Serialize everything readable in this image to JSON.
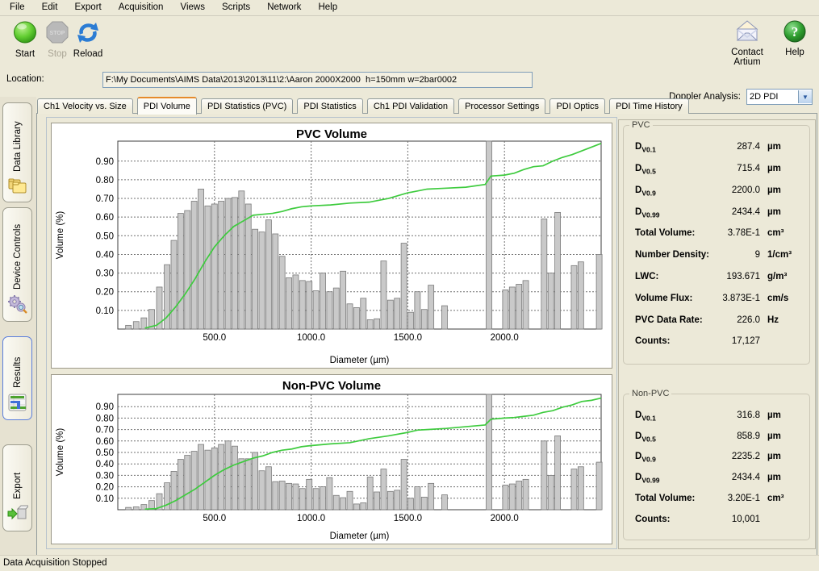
{
  "menu": {
    "items": [
      "File",
      "Edit",
      "Export",
      "Acquisition",
      "Views",
      "Scripts",
      "Network",
      "Help"
    ]
  },
  "toolbar": {
    "start_label": "Start",
    "stop_label": "Stop",
    "reload_label": "Reload",
    "contact_label": "Contact Artium",
    "help_label": "Help"
  },
  "location": {
    "label": "Location:",
    "value": "F:\\My Documents\\AIMS Data\\2013\\2013\\11\\2:\\Aaron 2000X2000  h=150mm w=2bar0002"
  },
  "doppler": {
    "label": "Doppler Analysis:",
    "value": "2D PDI"
  },
  "tabs": {
    "selected": "PDI Volume",
    "items": [
      "Ch1 Velocity vs. Size",
      "PDI Volume",
      "PDI Statistics (PVC)",
      "PDI Statistics",
      "Ch1 PDI Validation",
      "Processor Settings",
      "PDI Optics",
      "PDI Time History"
    ]
  },
  "sidebar": {
    "items": [
      {
        "label": "Data Library",
        "icon": "folders-icon"
      },
      {
        "label": "Device Controls",
        "icon": "gears-icon"
      },
      {
        "label": "Results",
        "icon": "bar-chart-icon"
      },
      {
        "label": "Export",
        "icon": "export-icon"
      }
    ]
  },
  "stats": {
    "pvc": {
      "title": "PVC",
      "rows": [
        {
          "label": "D",
          "sub": "V0.1",
          "value": "287.4",
          "unit": "µm"
        },
        {
          "label": "D",
          "sub": "V0.5",
          "value": "715.4",
          "unit": "µm"
        },
        {
          "label": "D",
          "sub": "V0.9",
          "value": "2200.0",
          "unit": "µm"
        },
        {
          "label": "D",
          "sub": "V0.99",
          "value": "2434.4",
          "unit": "µm"
        },
        {
          "label": "Total Volume:",
          "sub": "",
          "value": "3.78E-1",
          "unit": "cm³"
        },
        {
          "label": "Number Density:",
          "sub": "",
          "value": "9",
          "unit": "1/cm³"
        },
        {
          "label": "LWC:",
          "sub": "",
          "value": "193.671",
          "unit": "g/m³"
        },
        {
          "label": "Volume Flux:",
          "sub": "",
          "value": "3.873E-1",
          "unit": "cm/s"
        },
        {
          "label": "PVC Data Rate:",
          "sub": "",
          "value": "226.0",
          "unit": "Hz"
        },
        {
          "label": "Counts:",
          "sub": "",
          "value": "17,127",
          "unit": ""
        }
      ]
    },
    "nonpvc": {
      "title": "Non-PVC",
      "rows": [
        {
          "label": "D",
          "sub": "V0.1",
          "value": "316.8",
          "unit": "µm"
        },
        {
          "label": "D",
          "sub": "V0.5",
          "value": "858.9",
          "unit": "µm"
        },
        {
          "label": "D",
          "sub": "V0.9",
          "value": "2235.2",
          "unit": "µm"
        },
        {
          "label": "D",
          "sub": "V0.99",
          "value": "2434.4",
          "unit": "µm"
        },
        {
          "label": "Total Volume:",
          "sub": "",
          "value": "3.20E-1",
          "unit": "cm³"
        },
        {
          "label": "Counts:",
          "sub": "",
          "value": "10,001",
          "unit": ""
        }
      ]
    }
  },
  "status_bar": {
    "text": "Data Acquisition Stopped"
  },
  "colors": {
    "window_bg": "#ece9d8",
    "tab_selected_top": "#e68b2c",
    "bar_fill": "#c9c9c9",
    "bar_stroke": "#7a7a7a",
    "cumulative_line": "#3ecb3e",
    "start_green": "#4fc42e",
    "help_green": "#2f9e2f",
    "reload_blue": "#2b7cd4"
  },
  "chart_data": [
    {
      "type": "bar",
      "title": "PVC Volume",
      "xlabel": "Diameter (µm)",
      "ylabel": "Volume (%)",
      "xlim": [
        0,
        2500
      ],
      "ylim": [
        0,
        1.007
      ],
      "grid": true,
      "x_ticks": [
        500,
        1000,
        1500,
        2000
      ],
      "x_tick_labels": [
        "500.0",
        "1000.0",
        "1500.0",
        "2000.0"
      ],
      "y_ticks": [
        0.1,
        0.2,
        0.3,
        0.4,
        0.5,
        0.6,
        0.7,
        0.8,
        0.9
      ],
      "y_tick_labels": [
        "0.10",
        "0.20",
        "0.30",
        "0.40",
        "0.50",
        "0.60",
        "0.70",
        "0.80",
        "0.90"
      ],
      "bars": [
        [
          55,
          0.02
        ],
        [
          95,
          0.04
        ],
        [
          135,
          0.06
        ],
        [
          175,
          0.105
        ],
        [
          215,
          0.225
        ],
        [
          255,
          0.345
        ],
        [
          290,
          0.475
        ],
        [
          325,
          0.62
        ],
        [
          360,
          0.635
        ],
        [
          395,
          0.685
        ],
        [
          430,
          0.75
        ],
        [
          465,
          0.66
        ],
        [
          500,
          0.67
        ],
        [
          535,
          0.685
        ],
        [
          570,
          0.7
        ],
        [
          605,
          0.705
        ],
        [
          640,
          0.74
        ],
        [
          675,
          0.67
        ],
        [
          710,
          0.535
        ],
        [
          745,
          0.52
        ],
        [
          780,
          0.585
        ],
        [
          815,
          0.51
        ],
        [
          850,
          0.39
        ],
        [
          885,
          0.275
        ],
        [
          920,
          0.29
        ],
        [
          955,
          0.26
        ],
        [
          990,
          0.255
        ],
        [
          1025,
          0.205
        ],
        [
          1060,
          0.3
        ],
        [
          1095,
          0.2
        ],
        [
          1130,
          0.22
        ],
        [
          1165,
          0.31
        ],
        [
          1200,
          0.135
        ],
        [
          1235,
          0.115
        ],
        [
          1270,
          0.165
        ],
        [
          1305,
          0.05
        ],
        [
          1340,
          0.055
        ],
        [
          1375,
          0.365
        ],
        [
          1410,
          0.155
        ],
        [
          1445,
          0.165
        ],
        [
          1480,
          0.46
        ],
        [
          1515,
          0.09
        ],
        [
          1550,
          0.2
        ],
        [
          1585,
          0.105
        ],
        [
          1620,
          0.235
        ],
        [
          1690,
          0.125
        ],
        [
          1920,
          1.01
        ],
        [
          2005,
          0.21
        ],
        [
          2040,
          0.225
        ],
        [
          2075,
          0.24
        ],
        [
          2110,
          0.26
        ],
        [
          2205,
          0.59
        ],
        [
          2240,
          0.3
        ],
        [
          2275,
          0.625
        ],
        [
          2360,
          0.34
        ],
        [
          2395,
          0.36
        ],
        [
          2490,
          0.4
        ]
      ],
      "cumulative_line": [
        [
          140,
          0.005
        ],
        [
          200,
          0.02
        ],
        [
          250,
          0.06
        ],
        [
          300,
          0.12
        ],
        [
          350,
          0.19
        ],
        [
          400,
          0.27
        ],
        [
          450,
          0.36
        ],
        [
          500,
          0.44
        ],
        [
          550,
          0.5
        ],
        [
          600,
          0.55
        ],
        [
          650,
          0.58
        ],
        [
          700,
          0.61
        ],
        [
          750,
          0.615
        ],
        [
          800,
          0.62
        ],
        [
          850,
          0.63
        ],
        [
          900,
          0.645
        ],
        [
          950,
          0.655
        ],
        [
          1000,
          0.66
        ],
        [
          1100,
          0.665
        ],
        [
          1200,
          0.675
        ],
        [
          1300,
          0.68
        ],
        [
          1400,
          0.7
        ],
        [
          1500,
          0.73
        ],
        [
          1550,
          0.74
        ],
        [
          1600,
          0.75
        ],
        [
          1700,
          0.755
        ],
        [
          1800,
          0.76
        ],
        [
          1900,
          0.775
        ],
        [
          1930,
          0.82
        ],
        [
          2000,
          0.825
        ],
        [
          2050,
          0.835
        ],
        [
          2100,
          0.855
        ],
        [
          2150,
          0.87
        ],
        [
          2200,
          0.875
        ],
        [
          2250,
          0.9
        ],
        [
          2300,
          0.92
        ],
        [
          2350,
          0.935
        ],
        [
          2400,
          0.955
        ],
        [
          2450,
          0.975
        ],
        [
          2500,
          0.995
        ]
      ]
    },
    {
      "type": "bar",
      "title": "Non-PVC Volume",
      "xlabel": "Diameter (µm)",
      "ylabel": "Volume (%)",
      "xlim": [
        0,
        2500
      ],
      "ylim": [
        0,
        1.007
      ],
      "grid": true,
      "x_ticks": [
        500,
        1000,
        1500,
        2000
      ],
      "x_tick_labels": [
        "500.0",
        "1000.0",
        "1500.0",
        "2000.0"
      ],
      "y_ticks": [
        0.1,
        0.2,
        0.3,
        0.4,
        0.5,
        0.6,
        0.7,
        0.8,
        0.9
      ],
      "y_tick_labels": [
        "0.10",
        "0.20",
        "0.30",
        "0.40",
        "0.50",
        "0.60",
        "0.70",
        "0.80",
        "0.90"
      ],
      "bars": [
        [
          55,
          0.02
        ],
        [
          95,
          0.025
        ],
        [
          135,
          0.045
        ],
        [
          175,
          0.08
        ],
        [
          215,
          0.14
        ],
        [
          255,
          0.235
        ],
        [
          290,
          0.335
        ],
        [
          325,
          0.44
        ],
        [
          360,
          0.475
        ],
        [
          395,
          0.51
        ],
        [
          430,
          0.57
        ],
        [
          465,
          0.52
        ],
        [
          500,
          0.54
        ],
        [
          535,
          0.57
        ],
        [
          570,
          0.6
        ],
        [
          605,
          0.555
        ],
        [
          640,
          0.445
        ],
        [
          675,
          0.445
        ],
        [
          710,
          0.5
        ],
        [
          745,
          0.34
        ],
        [
          780,
          0.375
        ],
        [
          815,
          0.245
        ],
        [
          850,
          0.25
        ],
        [
          885,
          0.23
        ],
        [
          920,
          0.225
        ],
        [
          955,
          0.185
        ],
        [
          990,
          0.265
        ],
        [
          1025,
          0.185
        ],
        [
          1060,
          0.2
        ],
        [
          1095,
          0.28
        ],
        [
          1130,
          0.125
        ],
        [
          1165,
          0.105
        ],
        [
          1200,
          0.16
        ],
        [
          1235,
          0.05
        ],
        [
          1270,
          0.06
        ],
        [
          1305,
          0.285
        ],
        [
          1340,
          0.155
        ],
        [
          1375,
          0.355
        ],
        [
          1410,
          0.16
        ],
        [
          1445,
          0.17
        ],
        [
          1480,
          0.44
        ],
        [
          1515,
          0.1
        ],
        [
          1550,
          0.2
        ],
        [
          1585,
          0.11
        ],
        [
          1620,
          0.23
        ],
        [
          1690,
          0.13
        ],
        [
          1920,
          1.01
        ],
        [
          2005,
          0.215
        ],
        [
          2040,
          0.225
        ],
        [
          2075,
          0.25
        ],
        [
          2110,
          0.265
        ],
        [
          2205,
          0.6
        ],
        [
          2240,
          0.3
        ],
        [
          2275,
          0.645
        ],
        [
          2360,
          0.355
        ],
        [
          2395,
          0.375
        ],
        [
          2490,
          0.415
        ]
      ],
      "cumulative_line": [
        [
          140,
          0.005
        ],
        [
          200,
          0.01
        ],
        [
          250,
          0.04
        ],
        [
          300,
          0.08
        ],
        [
          350,
          0.13
        ],
        [
          400,
          0.18
        ],
        [
          450,
          0.24
        ],
        [
          500,
          0.3
        ],
        [
          550,
          0.35
        ],
        [
          600,
          0.39
        ],
        [
          650,
          0.42
        ],
        [
          700,
          0.45
        ],
        [
          750,
          0.47
        ],
        [
          800,
          0.5
        ],
        [
          850,
          0.52
        ],
        [
          900,
          0.53
        ],
        [
          950,
          0.55
        ],
        [
          1000,
          0.56
        ],
        [
          1100,
          0.575
        ],
        [
          1200,
          0.585
        ],
        [
          1300,
          0.62
        ],
        [
          1400,
          0.645
        ],
        [
          1500,
          0.675
        ],
        [
          1550,
          0.695
        ],
        [
          1600,
          0.7
        ],
        [
          1700,
          0.71
        ],
        [
          1800,
          0.725
        ],
        [
          1900,
          0.74
        ],
        [
          1930,
          0.79
        ],
        [
          2000,
          0.8
        ],
        [
          2050,
          0.805
        ],
        [
          2100,
          0.815
        ],
        [
          2150,
          0.825
        ],
        [
          2200,
          0.85
        ],
        [
          2250,
          0.865
        ],
        [
          2300,
          0.895
        ],
        [
          2350,
          0.915
        ],
        [
          2400,
          0.945
        ],
        [
          2450,
          0.955
        ],
        [
          2500,
          0.975
        ]
      ]
    }
  ]
}
